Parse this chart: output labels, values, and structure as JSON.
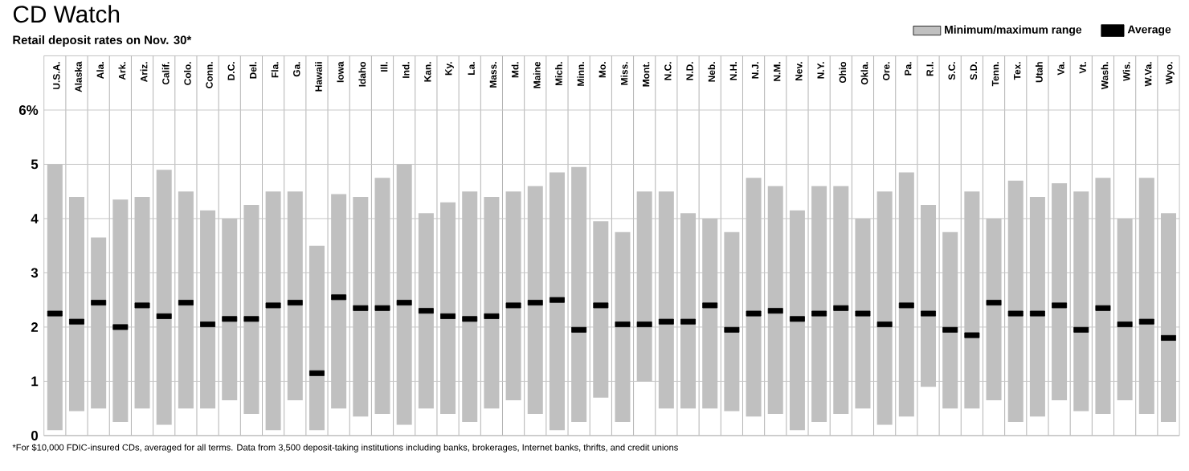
{
  "chart_data": {
    "type": "bar",
    "title": "CD Watch",
    "subtitle": "Retail deposit rates on Nov. 30*",
    "categories": [
      "U.S.A.",
      "Alaska",
      "Ala.",
      "Ark.",
      "Ariz.",
      "Calif.",
      "Colo.",
      "Conn.",
      "D.C.",
      "Del.",
      "Fla.",
      "Ga.",
      "Hawaii",
      "Iowa",
      "Idaho",
      "Ill.",
      "Ind.",
      "Kan.",
      "Ky.",
      "La.",
      "Mass.",
      "Md.",
      "Maine",
      "Mich.",
      "Minn.",
      "Mo.",
      "Miss.",
      "Mont.",
      "N.C.",
      "N.D.",
      "Neb.",
      "N.H.",
      "N.J.",
      "N.M.",
      "Nev.",
      "N.Y.",
      "Ohio",
      "Okla.",
      "Ore.",
      "Pa.",
      "R.I.",
      "S.C.",
      "S.D.",
      "Tenn.",
      "Tex.",
      "Utah",
      "Va.",
      "Vt.",
      "Wash.",
      "Wis.",
      "W.Va.",
      "Wyo."
    ],
    "series": [
      {
        "name": "Minimum/maximum range",
        "type": "bar",
        "color": "#c0c0c0",
        "base": [
          0.1,
          0.45,
          0.5,
          0.25,
          0.5,
          0.2,
          0.5,
          0.5,
          0.65,
          0.4,
          0.1,
          0.65,
          0.1,
          0.5,
          0.35,
          0.4,
          0.2,
          0.5,
          0.4,
          0.25,
          0.5,
          0.65,
          0.4,
          0.1,
          0.25,
          0.7,
          0.25,
          1.0,
          0.5,
          0.5,
          0.5,
          0.45,
          0.35,
          0.4,
          0.1,
          0.25,
          0.4,
          0.5,
          0.2,
          0.35,
          0.9,
          0.5,
          0.5,
          0.65,
          0.25,
          0.35,
          0.65,
          0.45,
          0.4,
          0.65,
          0.4,
          0.25
        ],
        "values": [
          4.9,
          3.95,
          3.15,
          4.1,
          3.9,
          4.7,
          4.0,
          3.65,
          3.35,
          3.85,
          4.4,
          3.85,
          3.4,
          3.95,
          4.05,
          4.35,
          4.8,
          3.6,
          3.9,
          4.25,
          3.9,
          3.85,
          4.2,
          4.75,
          4.7,
          3.25,
          3.5,
          3.5,
          4.0,
          3.6,
          3.5,
          3.3,
          4.4,
          4.2,
          4.05,
          4.35,
          4.2,
          3.5,
          4.3,
          4.5,
          3.35,
          3.25,
          4.0,
          3.35,
          4.45,
          4.05,
          4.0,
          4.05,
          4.35,
          3.35,
          4.35,
          3.85
        ]
      },
      {
        "name": "Average",
        "type": "scatter",
        "color": "#000000",
        "values": [
          2.25,
          2.1,
          2.45,
          2.0,
          2.4,
          2.2,
          2.45,
          2.05,
          2.15,
          2.15,
          2.4,
          2.45,
          1.15,
          2.55,
          2.35,
          2.35,
          2.45,
          2.3,
          2.2,
          2.15,
          2.2,
          2.4,
          2.45,
          2.5,
          1.95,
          2.4,
          2.05,
          2.05,
          2.1,
          2.1,
          2.4,
          1.95,
          2.25,
          2.3,
          2.15,
          2.25,
          2.35,
          2.25,
          2.05,
          2.4,
          2.25,
          1.95,
          1.85,
          2.45,
          2.25,
          2.25,
          2.4,
          1.95,
          2.35,
          2.05,
          2.1,
          1.8
        ]
      }
    ],
    "marker": "square",
    "ylim": [
      0,
      7
    ],
    "yticks": [
      0,
      1,
      2,
      3,
      4,
      5,
      {
        "value": 6,
        "label": "6%"
      }
    ],
    "grid": true,
    "legend": "top right",
    "annotations": [
      "*For $10,000 FDIC-insured CDs, averaged for all terms. Data from 3,500 deposit-taking institutions including banks, brokerages, Internet banks, thrifts, and credit unions"
    ]
  }
}
